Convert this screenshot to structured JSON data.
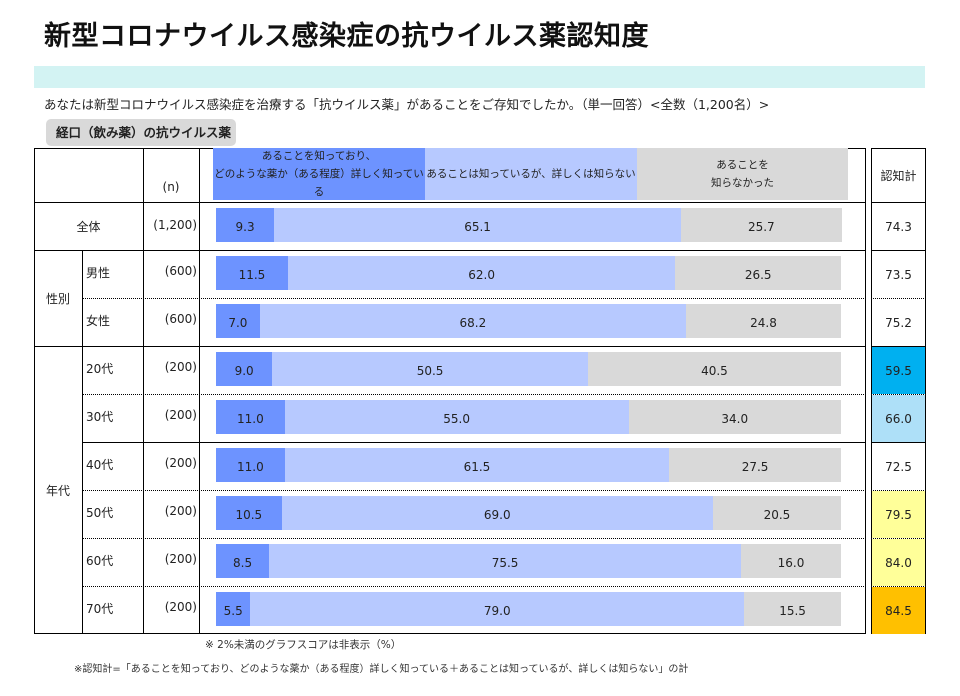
{
  "title": "新型コロナウイルス感染症の抗ウイルス薬認知度",
  "question": "あなたは新型コロナウイルス感染症を治療する「抗ウイルス薬」があることをご存知でしたか。（単一回答）<全数（1,200名）>",
  "badge": "経口（飲み薬）の抗ウイルス薬",
  "n_header": "(n)",
  "total_header": "認知計",
  "colors": {
    "segment1": "#6D93FF",
    "segment2": "#B7C9FF",
    "segment3": "#D9D9D9",
    "band": "#D3F3F3",
    "low_highlight": "#00B0F0",
    "mid_low_highlight": "#AEE0F8",
    "mid_high_highlight": "#FFFF99",
    "high_highlight": "#FFC000"
  },
  "notes": {
    "note1": "※ 2%未満のグラフスコアは非表示（%）",
    "note2": "※認知計=「あることを知っており、どのような薬か（ある程度）詳しく知っている＋あることは知っているが、詳しくは知らない」の計"
  },
  "chart_data": {
    "type": "bar",
    "orientation": "horizontal",
    "stacked": true,
    "unit": "%",
    "title": "新型コロナウイルス感染症の抗ウイルス薬認知度",
    "subtitle": "経口（飲み薬）の抗ウイルス薬",
    "xlim": [
      0,
      100
    ],
    "legend": [
      "あることを知っており、\nどのような薬か（ある程度）詳しく知っている",
      "あることは知っているが、詳しくは知らない",
      "あることを\n知らなかった"
    ],
    "legend_placement": "top",
    "groups": [
      {
        "label": "",
        "rows": [
          0
        ]
      },
      {
        "label": "性別",
        "rows": [
          1,
          2
        ]
      },
      {
        "label": "年代",
        "rows": [
          3,
          4,
          5,
          6,
          7,
          8
        ]
      }
    ],
    "categories": [
      "全体",
      "男性",
      "女性",
      "20代",
      "30代",
      "40代",
      "50代",
      "60代",
      "70代"
    ],
    "n": [
      "(1,200)",
      "(600)",
      "(600)",
      "(200)",
      "(200)",
      "(200)",
      "(200)",
      "(200)",
      "(200)"
    ],
    "series": [
      {
        "name": "あることを知っており、どのような薬か（ある程度）詳しく知っている",
        "values": [
          9.3,
          11.5,
          7.0,
          9.0,
          11.0,
          11.0,
          10.5,
          8.5,
          5.5
        ]
      },
      {
        "name": "あることは知っているが、詳しくは知らない",
        "values": [
          65.1,
          62.0,
          68.2,
          50.5,
          55.0,
          61.5,
          69.0,
          75.5,
          79.0
        ]
      },
      {
        "name": "あることを知らなかった",
        "values": [
          25.7,
          26.5,
          24.8,
          40.5,
          34.0,
          27.5,
          20.5,
          16.0,
          15.5
        ]
      }
    ],
    "totals": {
      "label": "認知計",
      "values": [
        "74.3",
        "73.5",
        "75.2",
        "59.5",
        "66.0",
        "72.5",
        "79.5",
        "84.0",
        "84.5"
      ],
      "highlight": [
        "none",
        "none",
        "none",
        "low",
        "mid_low",
        "none",
        "mid_high",
        "mid_high",
        "high"
      ]
    }
  }
}
